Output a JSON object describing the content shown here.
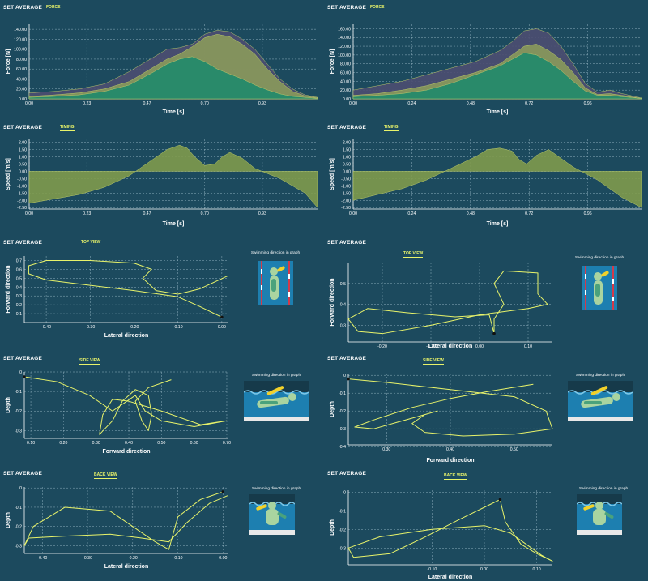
{
  "colors": {
    "background": "#1c4a5e",
    "grid": "#8fb0be",
    "line": "#e8f36a",
    "series_force_a": "#4d4e71",
    "series_force_b": "#8a9a5b",
    "series_force_c": "#1f8a6c",
    "series_timing": "#7f9a4c"
  },
  "icons": {
    "top": "swimmer-top-view-icon",
    "side": "swimmer-side-view-icon",
    "back": "swimmer-back-view-icon"
  },
  "chart_data": [
    {
      "id": "force-left",
      "type": "area",
      "title": "SET AVERAGE",
      "badge": "FORCE",
      "xlabel": "Time [s]",
      "ylabel": "Force [N]",
      "xlim": [
        0,
        1.15
      ],
      "ylim": [
        0,
        150
      ],
      "xticks": [
        "0.00",
        "0.23",
        "0.47",
        "0.70",
        "0.93"
      ],
      "yticks": [
        "0.00",
        "20.00",
        "40.00",
        "60.00",
        "80.00",
        "100.00",
        "120.00",
        "140.00"
      ],
      "x": [
        0,
        0.1,
        0.2,
        0.3,
        0.4,
        0.5,
        0.55,
        0.6,
        0.65,
        0.7,
        0.75,
        0.8,
        0.85,
        0.9,
        0.95,
        1.0,
        1.05,
        1.1,
        1.15
      ],
      "series": [
        {
          "values": [
            12,
            15,
            20,
            30,
            55,
            85,
            100,
            103,
            110,
            130,
            138,
            135,
            120,
            100,
            70,
            40,
            20,
            8,
            3
          ]
        },
        {
          "values": [
            5,
            8,
            12,
            20,
            35,
            65,
            80,
            90,
            105,
            123,
            130,
            125,
            110,
            90,
            60,
            35,
            15,
            6,
            2
          ]
        },
        {
          "values": [
            3,
            5,
            8,
            15,
            28,
            55,
            70,
            80,
            85,
            75,
            60,
            50,
            40,
            28,
            18,
            10,
            5,
            3,
            1
          ]
        }
      ]
    },
    {
      "id": "force-right",
      "type": "area",
      "title": "SET AVERAGE",
      "badge": "FORCE",
      "xlabel": "Time [s]",
      "ylabel": "Force [N]",
      "xlim": [
        0,
        1.18
      ],
      "ylim": [
        0,
        170
      ],
      "xticks": [
        "0.00",
        "0.24",
        "0.48",
        "0.72",
        "0.96"
      ],
      "yticks": [
        "0.00",
        "20.00",
        "40.00",
        "60.00",
        "80.00",
        "100.00",
        "120.00",
        "140.00",
        "160.00"
      ],
      "x": [
        0,
        0.1,
        0.2,
        0.3,
        0.4,
        0.5,
        0.6,
        0.65,
        0.7,
        0.75,
        0.8,
        0.85,
        0.9,
        0.95,
        1.0,
        1.05,
        1.1,
        1.18
      ],
      "series": [
        {
          "values": [
            20,
            30,
            40,
            55,
            70,
            85,
            110,
            130,
            155,
            160,
            150,
            120,
            80,
            35,
            15,
            20,
            12,
            2
          ]
        },
        {
          "values": [
            8,
            12,
            20,
            30,
            45,
            60,
            80,
            100,
            120,
            125,
            110,
            90,
            60,
            25,
            10,
            12,
            8,
            1
          ]
        },
        {
          "values": [
            5,
            8,
            12,
            20,
            35,
            55,
            75,
            90,
            105,
            100,
            85,
            65,
            40,
            18,
            8,
            8,
            5,
            1
          ]
        }
      ]
    },
    {
      "id": "timing-left",
      "type": "area",
      "title": "SET AVERAGE",
      "badge": "TIMING",
      "xlabel": "Time [s]",
      "ylabel": "Speed [m/s]",
      "xlim": [
        0,
        1.15
      ],
      "ylim": [
        -2.6,
        2.2
      ],
      "xticks": [
        "0.00",
        "0.23",
        "0.47",
        "0.70",
        "0.93"
      ],
      "yticks": [
        "-2.50",
        "-2.00",
        "-1.50",
        "-1.00",
        "-0.50",
        "0.00",
        "0.50",
        "1.00",
        "1.50",
        "2.00"
      ],
      "x": [
        0,
        0.1,
        0.2,
        0.3,
        0.4,
        0.45,
        0.5,
        0.55,
        0.6,
        0.63,
        0.66,
        0.7,
        0.74,
        0.77,
        0.8,
        0.85,
        0.9,
        1.0,
        1.1,
        1.15
      ],
      "series": [
        {
          "values": [
            -2.2,
            -1.9,
            -1.6,
            -1.1,
            -0.3,
            0.3,
            0.9,
            1.5,
            1.8,
            1.6,
            1.0,
            0.4,
            0.5,
            1.0,
            1.3,
            0.9,
            0.2,
            -0.5,
            -1.5,
            -2.5
          ]
        }
      ]
    },
    {
      "id": "timing-right",
      "type": "area",
      "title": "SET AVERAGE",
      "badge": "TIMING",
      "xlabel": "Time [s]",
      "ylabel": "Speed [m/s]",
      "xlim": [
        0,
        1.18
      ],
      "ylim": [
        -2.6,
        2.2
      ],
      "xticks": [
        "0.00",
        "0.24",
        "0.48",
        "0.72",
        "0.96"
      ],
      "yticks": [
        "-2.50",
        "-2.00",
        "-1.50",
        "-1.00",
        "-0.50",
        "0.00",
        "0.50",
        "1.00",
        "1.50",
        "2.00"
      ],
      "x": [
        0,
        0.1,
        0.2,
        0.3,
        0.4,
        0.5,
        0.55,
        0.6,
        0.65,
        0.68,
        0.71,
        0.75,
        0.8,
        0.9,
        1.0,
        1.1,
        1.18
      ],
      "series": [
        {
          "values": [
            -2.0,
            -1.6,
            -1.2,
            -0.6,
            0.2,
            1.0,
            1.5,
            1.6,
            1.4,
            0.8,
            0.5,
            1.1,
            1.5,
            0.3,
            -0.6,
            -1.8,
            -2.5
          ]
        }
      ]
    },
    {
      "id": "top-left",
      "type": "line",
      "title": "SET AVERAGE",
      "badge": "TOP VIEW",
      "xlabel": "Lateral direction",
      "ylabel": "Forward direction",
      "xlim": [
        -0.45,
        0.015
      ],
      "ylim": [
        0,
        0.75
      ],
      "xticks": [
        "-0.40",
        "-0.30",
        "-0.20",
        "-0.10",
        "0.00"
      ],
      "xtickvals": [
        -0.4,
        -0.3,
        -0.2,
        -0.1,
        0
      ],
      "yticks": [
        "0.1",
        "0.2",
        "0.3",
        "0.4",
        "0.5",
        "0.6",
        "0.7"
      ],
      "ytickvals": [
        0.1,
        0.2,
        0.3,
        0.4,
        0.5,
        0.6,
        0.7
      ],
      "caption": "Swimming direction in graph",
      "icon": "top",
      "end": [
        0.0,
        0.06
      ],
      "points": [
        [
          0.015,
          0.53
        ],
        [
          -0.05,
          0.38
        ],
        [
          -0.1,
          0.32
        ],
        [
          -0.15,
          0.36
        ],
        [
          -0.18,
          0.5
        ],
        [
          -0.16,
          0.6
        ],
        [
          -0.2,
          0.67
        ],
        [
          -0.3,
          0.7
        ],
        [
          -0.4,
          0.7
        ],
        [
          -0.44,
          0.64
        ],
        [
          -0.44,
          0.55
        ],
        [
          -0.4,
          0.48
        ],
        [
          -0.3,
          0.42
        ],
        [
          -0.2,
          0.36
        ],
        [
          -0.1,
          0.29
        ],
        [
          -0.05,
          0.18
        ],
        [
          0.0,
          0.06
        ]
      ]
    },
    {
      "id": "top-right",
      "type": "line",
      "title": "SET AVERAGE",
      "badge": "TOP VIEW",
      "xlabel": "Lateral direction",
      "ylabel": "Forward direction",
      "xlim": [
        -0.27,
        0.15
      ],
      "ylim": [
        0.22,
        0.6
      ],
      "xticks": [
        "-0.20",
        "-0.10",
        "0.00",
        "0.10"
      ],
      "xtickvals": [
        -0.2,
        -0.1,
        0,
        0.1
      ],
      "yticks": [
        "0.3",
        "0.4",
        "0.5"
      ],
      "ytickvals": [
        0.3,
        0.4,
        0.5
      ],
      "caption": "Swimming direction in graph",
      "icon": "top",
      "end": [
        0.03,
        0.26
      ],
      "points": [
        [
          0.03,
          0.26
        ],
        [
          0.02,
          0.35
        ],
        [
          -0.05,
          0.34
        ],
        [
          -0.15,
          0.36
        ],
        [
          -0.23,
          0.38
        ],
        [
          -0.27,
          0.33
        ],
        [
          -0.25,
          0.27
        ],
        [
          -0.2,
          0.26
        ],
        [
          -0.1,
          0.3
        ],
        [
          0.0,
          0.35
        ],
        [
          0.1,
          0.38
        ],
        [
          0.14,
          0.4
        ],
        [
          0.12,
          0.45
        ],
        [
          0.12,
          0.55
        ],
        [
          0.05,
          0.56
        ],
        [
          0.03,
          0.5
        ],
        [
          0.04,
          0.45
        ],
        [
          0.05,
          0.4
        ],
        [
          0.03,
          0.33
        ],
        [
          0.03,
          0.26
        ]
      ]
    },
    {
      "id": "side-left",
      "type": "line",
      "title": "SET AVERAGE",
      "badge": "SIDE VIEW",
      "xlabel": "Forward direction",
      "ylabel": "Depth",
      "xlim": [
        0.08,
        0.705
      ],
      "ylim": [
        -0.34,
        0.0
      ],
      "xticks": [
        "0.10",
        "0.20",
        "0.30",
        "0.40",
        "0.50",
        "0.60",
        "0.70"
      ],
      "xtickvals": [
        0.1,
        0.2,
        0.3,
        0.4,
        0.5,
        0.6,
        0.7
      ],
      "yticks": [
        "0",
        "-0.1",
        "-0.2",
        "-0.3"
      ],
      "ytickvals": [
        0,
        -0.1,
        -0.2,
        -0.3
      ],
      "caption": "Swimming direction in graph",
      "icon": "side",
      "end": [
        0.08,
        -0.025
      ],
      "points": [
        [
          0.08,
          -0.025
        ],
        [
          0.18,
          -0.05
        ],
        [
          0.28,
          -0.12
        ],
        [
          0.35,
          -0.2
        ],
        [
          0.42,
          -0.12
        ],
        [
          0.45,
          -0.2
        ],
        [
          0.5,
          -0.25
        ],
        [
          0.6,
          -0.28
        ],
        [
          0.7,
          -0.25
        ],
        [
          0.62,
          -0.27
        ],
        [
          0.5,
          -0.2
        ],
        [
          0.4,
          -0.15
        ],
        [
          0.35,
          -0.14
        ],
        [
          0.32,
          -0.22
        ],
        [
          0.31,
          -0.32
        ],
        [
          0.35,
          -0.25
        ],
        [
          0.38,
          -0.15
        ],
        [
          0.42,
          -0.09
        ],
        [
          0.46,
          -0.12
        ],
        [
          0.47,
          -0.22
        ],
        [
          0.46,
          -0.3
        ],
        [
          0.44,
          -0.25
        ],
        [
          0.42,
          -0.15
        ],
        [
          0.46,
          -0.08
        ],
        [
          0.53,
          -0.04
        ]
      ]
    },
    {
      "id": "side-right",
      "type": "line",
      "title": "SET AVERAGE",
      "badge": "SIDE VIEW",
      "xlabel": "Forward direction",
      "ylabel": "Depth",
      "xlim": [
        0.24,
        0.56
      ],
      "ylim": [
        -0.39,
        0.01
      ],
      "xticks": [
        "0.30",
        "0.40",
        "0.50"
      ],
      "xtickvals": [
        0.3,
        0.4,
        0.5
      ],
      "yticks": [
        "0",
        "-0.1",
        "-0.2",
        "-0.3",
        "-0.4"
      ],
      "ytickvals": [
        0,
        -0.1,
        -0.2,
        -0.3,
        -0.4
      ],
      "caption": "Swimming direction in graph",
      "icon": "side",
      "end": [
        0.24,
        -0.02
      ],
      "points": [
        [
          0.24,
          -0.02
        ],
        [
          0.3,
          -0.04
        ],
        [
          0.4,
          -0.08
        ],
        [
          0.5,
          -0.12
        ],
        [
          0.55,
          -0.2
        ],
        [
          0.56,
          -0.3
        ],
        [
          0.5,
          -0.33
        ],
        [
          0.42,
          -0.34
        ],
        [
          0.36,
          -0.32
        ],
        [
          0.34,
          -0.27
        ],
        [
          0.36,
          -0.22
        ],
        [
          0.38,
          -0.2
        ],
        [
          0.36,
          -0.22
        ],
        [
          0.32,
          -0.26
        ],
        [
          0.28,
          -0.3
        ],
        [
          0.25,
          -0.29
        ],
        [
          0.28,
          -0.25
        ],
        [
          0.34,
          -0.18
        ],
        [
          0.4,
          -0.13
        ],
        [
          0.46,
          -0.09
        ],
        [
          0.53,
          -0.05
        ]
      ]
    },
    {
      "id": "back-left",
      "type": "line",
      "title": "SET AVERAGE",
      "badge": "BACK VIEW",
      "xlabel": "Lateral direction",
      "ylabel": "Depth",
      "xlim": [
        -0.44,
        0.012
      ],
      "ylim": [
        -0.34,
        0.005
      ],
      "xticks": [
        "-0.40",
        "-0.30",
        "-0.20",
        "-0.10",
        "0.00"
      ],
      "xtickvals": [
        -0.4,
        -0.3,
        -0.2,
        -0.1,
        0
      ],
      "yticks": [
        "0",
        "-0.1",
        "-0.2",
        "-0.3"
      ],
      "ytickvals": [
        0,
        -0.1,
        -0.2,
        -0.3
      ],
      "caption": "Swimming direction in graph",
      "icon": "back",
      "end": [
        0.0,
        -0.02
      ],
      "points": [
        [
          0.0,
          -0.02
        ],
        [
          -0.05,
          -0.06
        ],
        [
          -0.1,
          -0.15
        ],
        [
          -0.12,
          -0.32
        ],
        [
          -0.15,
          -0.28
        ],
        [
          -0.2,
          -0.2
        ],
        [
          -0.25,
          -0.12
        ],
        [
          -0.35,
          -0.1
        ],
        [
          -0.42,
          -0.2
        ],
        [
          -0.44,
          -0.3
        ],
        [
          -0.43,
          -0.26
        ],
        [
          -0.35,
          -0.25
        ],
        [
          -0.25,
          -0.24
        ],
        [
          -0.18,
          -0.26
        ],
        [
          -0.12,
          -0.28
        ],
        [
          -0.08,
          -0.18
        ],
        [
          -0.03,
          -0.08
        ],
        [
          0.01,
          -0.04
        ]
      ]
    },
    {
      "id": "back-right",
      "type": "line",
      "title": "SET AVERAGE",
      "badge": "BACK VIEW",
      "xlabel": "Lateral direction",
      "ylabel": "Depth",
      "xlim": [
        -0.26,
        0.13
      ],
      "ylim": [
        -0.39,
        0.01
      ],
      "xticks": [
        "-0.10",
        "0.00",
        "0.10"
      ],
      "xtickvals": [
        -0.1,
        0,
        0.1
      ],
      "yticks": [
        "0",
        "-0.1",
        "-0.2",
        "-0.3"
      ],
      "ytickvals": [
        0,
        -0.1,
        -0.2,
        -0.3
      ],
      "caption": "Swimming direction in graph",
      "icon": "back",
      "end": [
        0.03,
        -0.04
      ],
      "points": [
        [
          0.03,
          -0.04
        ],
        [
          -0.05,
          -0.15
        ],
        [
          -0.12,
          -0.25
        ],
        [
          -0.18,
          -0.33
        ],
        [
          -0.25,
          -0.35
        ],
        [
          -0.26,
          -0.3
        ],
        [
          -0.2,
          -0.24
        ],
        [
          -0.1,
          -0.2
        ],
        [
          0.0,
          -0.18
        ],
        [
          0.05,
          -0.22
        ],
        [
          0.08,
          -0.28
        ],
        [
          0.11,
          -0.34
        ],
        [
          0.13,
          -0.37
        ],
        [
          0.1,
          -0.33
        ],
        [
          0.07,
          -0.28
        ],
        [
          0.04,
          -0.16
        ],
        [
          0.03,
          -0.04
        ]
      ]
    }
  ]
}
